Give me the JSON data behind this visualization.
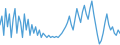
{
  "line_color": "#4d9fd6",
  "background_color": "#ffffff",
  "linewidth": 0.9,
  "values": [
    20,
    28,
    10,
    35,
    18,
    30,
    8,
    25,
    35,
    12,
    28,
    22,
    8,
    30,
    15,
    25,
    10,
    20,
    12,
    18,
    10,
    15,
    8,
    12,
    10,
    8,
    10,
    8,
    9,
    8,
    9,
    8,
    10,
    12,
    15,
    18,
    22,
    28,
    20,
    15,
    25,
    35,
    28,
    22,
    32,
    38,
    30,
    25,
    35,
    42,
    30,
    20,
    10,
    2,
    5,
    12,
    22,
    30,
    20,
    15,
    18,
    12,
    10,
    15,
    12
  ]
}
